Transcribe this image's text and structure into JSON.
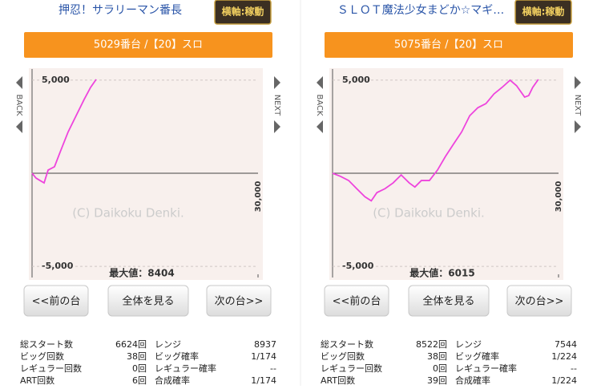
{
  "chart_data": [
    {
      "type": "line",
      "xlim": [
        0,
        30000
      ],
      "ylim": [
        -5600,
        5600
      ],
      "yticks": [
        {
          "value": -5000,
          "label": "-5,000"
        },
        {
          "value": 5000,
          "label": "5,000"
        }
      ],
      "xticks": [
        {
          "value": 30000,
          "label": "30,000"
        }
      ],
      "color": "#ee44dd",
      "x": [
        0,
        530,
        1060,
        1600,
        2130,
        2980,
        3720,
        4790,
        5850,
        6910,
        7770,
        8510
      ],
      "values": [
        0,
        -260,
        -390,
        -520,
        170,
        350,
        1130,
        2220,
        3090,
        3960,
        4610,
        5040
      ],
      "watermark": "(C) Daikoku Denki.",
      "max_label": "最大値：8404"
    },
    {
      "type": "line",
      "xlim": [
        0,
        30000
      ],
      "ylim": [
        -5600,
        5600
      ],
      "yticks": [
        {
          "value": -5000,
          "label": "-5,000"
        },
        {
          "value": 5000,
          "label": "5,000"
        }
      ],
      "xticks": [
        {
          "value": 30000,
          "label": "30,000"
        }
      ],
      "color": "#ee44dd",
      "x": [
        0,
        1070,
        2140,
        3210,
        4290,
        5140,
        5890,
        6960,
        8040,
        9110,
        10180,
        10930,
        11790,
        12860,
        13930,
        15000,
        16070,
        17140,
        18210,
        19290,
        20360,
        21430,
        22500,
        23570,
        24430,
        25500,
        26040,
        26570,
        27320
      ],
      "values": [
        0,
        -170,
        -390,
        -830,
        -1260,
        -1480,
        -1040,
        -830,
        -520,
        -90,
        -520,
        -740,
        -390,
        -390,
        170,
        910,
        1570,
        2220,
        3090,
        3520,
        3740,
        4260,
        4610,
        5000,
        4700,
        4090,
        4170,
        4610,
        5040
      ],
      "watermark": "(C) Daikoku Denki.",
      "max_label": "最大値：6015"
    }
  ],
  "panels": [
    {
      "title": "押忍！サラリーマン番長",
      "badge": "横軸:稼動",
      "machine": "5029番台 /【20】スロ",
      "back": "BACK",
      "next": "NEXT",
      "buttons": [
        "<<前の台",
        "全体を見る",
        "次の台>>"
      ],
      "stats": [
        [
          "総スタート数",
          "6624回",
          "レンジ",
          "8937"
        ],
        [
          "ビッグ回数",
          "38回",
          "ビッグ確率",
          "1/174"
        ],
        [
          "レギュラー回数",
          "0回",
          "レギュラー確率",
          "--"
        ],
        [
          "ART回数",
          "6回",
          "合成確率",
          "1/174"
        ]
      ]
    },
    {
      "title": "ＳＬＯＴ魔法少女まどか☆マギ…",
      "badge": "横軸:稼動",
      "machine": "5075番台 /【20】スロ",
      "back": "BACK",
      "next": "NEXT",
      "buttons": [
        "<<前の台",
        "全体を見る",
        "次の台>>"
      ],
      "stats": [
        [
          "総スタート数",
          "8522回",
          "レンジ",
          "7544"
        ],
        [
          "ビッグ回数",
          "38回",
          "ビッグ確率",
          "1/224"
        ],
        [
          "レギュラー回数",
          "0回",
          "レギュラー確率",
          "--"
        ],
        [
          "ART回数",
          "39回",
          "合成確率",
          "1/224"
        ]
      ]
    }
  ]
}
